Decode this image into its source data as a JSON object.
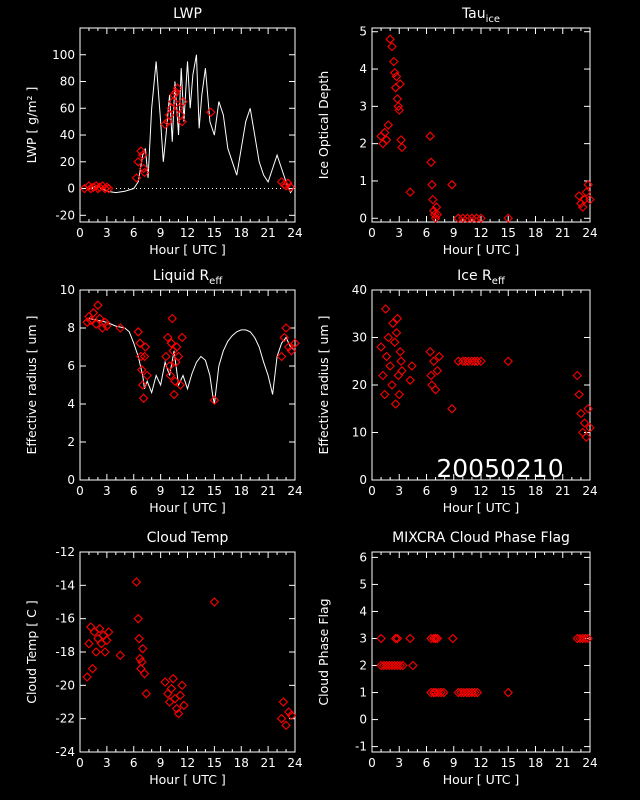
{
  "figure": {
    "date_stamp": "20050210",
    "colors": {
      "background": "#000000",
      "axes": "#ffffff",
      "markers": "#ff0000",
      "trace": "#ffffff"
    },
    "marker_shape": "diamond"
  },
  "chart_data": [
    {
      "id": "lwp",
      "type": "scatter",
      "title": "LWP",
      "title_sub": "",
      "xlabel": "Hour [ UTC ]",
      "ylabel": "LWP [ g/m² ]",
      "xlim": [
        0,
        24
      ],
      "ylim": [
        -25,
        120
      ],
      "xticks": [
        0,
        3,
        6,
        9,
        12,
        15,
        18,
        21,
        24
      ],
      "yticks": [
        -20,
        0,
        20,
        40,
        60,
        80,
        100
      ],
      "zero_line": true,
      "line": {
        "name": "",
        "x": [
          1.0,
          2.0,
          3.0,
          4.0,
          5.0,
          6.0,
          6.5,
          7.0,
          7.3,
          7.6,
          8.0,
          8.5,
          9.0,
          9.3,
          9.6,
          10.0,
          10.3,
          10.6,
          11.0,
          11.3,
          11.6,
          12.0,
          12.3,
          12.6,
          13.0,
          13.3,
          13.6,
          14.0,
          14.5,
          15.0,
          15.5,
          16.0,
          16.5,
          17.0,
          17.5,
          18.0,
          18.5,
          19.0,
          19.5,
          20.0,
          20.5,
          21.0,
          21.5,
          22.0,
          22.5,
          23.0,
          23.5,
          24.0
        ],
        "y": [
          0,
          2,
          -2,
          -3,
          -2,
          0,
          5,
          25,
          30,
          8,
          60,
          95,
          50,
          20,
          40,
          70,
          35,
          80,
          40,
          90,
          50,
          95,
          60,
          85,
          100,
          45,
          70,
          90,
          50,
          40,
          65,
          55,
          30,
          20,
          10,
          30,
          50,
          60,
          40,
          20,
          10,
          5,
          15,
          25,
          15,
          5,
          -3,
          2
        ]
      },
      "series": [
        {
          "name": "",
          "x": [
            0.5,
            1.0,
            1.2,
            1.5,
            1.8,
            2.0,
            2.2,
            2.5,
            2.8,
            3.0,
            3.2,
            6.3,
            6.5,
            6.8,
            7.0,
            7.1,
            7.2,
            9.5,
            9.8,
            10.0,
            10.2,
            10.4,
            10.5,
            10.7,
            10.9,
            11.0,
            11.2,
            11.4,
            11.5,
            14.6,
            22.5,
            22.8,
            23.0,
            23.2,
            23.5
          ],
          "y": [
            0,
            2,
            0,
            1,
            2,
            0,
            1,
            2,
            0,
            1,
            0,
            8,
            20,
            28,
            25,
            15,
            12,
            48,
            50,
            55,
            60,
            65,
            70,
            72,
            75,
            60,
            55,
            50,
            65,
            57,
            5,
            3,
            2,
            4,
            1
          ]
        }
      ]
    },
    {
      "id": "tau-ice",
      "type": "scatter",
      "title": "Tau",
      "title_sub": "ice",
      "xlabel": "Hour [ UTC ]",
      "ylabel": "Ice Optical Depth",
      "xlim": [
        0,
        24
      ],
      "ylim": [
        -0.1,
        5.1
      ],
      "xticks": [
        0,
        3,
        6,
        9,
        12,
        15,
        18,
        21,
        24
      ],
      "yticks": [
        0,
        1,
        2,
        3,
        4,
        5
      ],
      "series": [
        {
          "name": "",
          "x": [
            1.0,
            1.2,
            1.4,
            1.6,
            1.8,
            2.0,
            2.2,
            2.4,
            2.5,
            2.6,
            2.7,
            2.8,
            2.9,
            3.0,
            3.1,
            3.2,
            3.3,
            4.2,
            6.4,
            6.5,
            6.6,
            6.7,
            6.8,
            6.9,
            7.0,
            7.1,
            7.2,
            8.8,
            9.5,
            10.0,
            10.5,
            11.0,
            11.5,
            12.0,
            15.0,
            22.8,
            23.0,
            23.2,
            23.4,
            23.6,
            23.8,
            24.0
          ],
          "y": [
            2.2,
            2.0,
            2.3,
            2.1,
            2.5,
            4.8,
            4.6,
            4.2,
            3.9,
            3.5,
            3.8,
            3.2,
            3.0,
            2.9,
            3.6,
            2.1,
            1.9,
            0.7,
            2.2,
            1.5,
            0.9,
            0.5,
            0.2,
            0.1,
            0.0,
            0.3,
            0.1,
            0.9,
            0.0,
            0.0,
            0.0,
            0.0,
            0.0,
            0.0,
            0.0,
            0.6,
            0.4,
            0.3,
            0.5,
            0.7,
            0.9,
            0.5
          ]
        }
      ]
    },
    {
      "id": "liquid-reff",
      "type": "scatter",
      "title": "Liquid R",
      "title_sub": "eff",
      "xlabel": "Hour [ UTC ]",
      "ylabel": "Effective radius [ um ]",
      "xlim": [
        0,
        24
      ],
      "ylim": [
        0,
        10
      ],
      "xticks": [
        0,
        3,
        6,
        9,
        12,
        15,
        18,
        21,
        24
      ],
      "yticks": [
        0,
        2,
        4,
        6,
        8,
        10
      ],
      "line": {
        "name": "",
        "x": [
          1.0,
          2.0,
          3.0,
          4.0,
          5.0,
          5.5,
          6.0,
          6.5,
          7.0,
          7.2,
          7.5,
          8.0,
          8.5,
          9.0,
          9.5,
          10.0,
          10.5,
          11.0,
          11.5,
          12.0,
          12.5,
          13.0,
          13.5,
          14.0,
          14.5,
          14.8,
          15.0,
          15.2,
          15.5,
          16.0,
          16.5,
          17.0,
          17.5,
          18.0,
          18.5,
          19.0,
          19.5,
          20.0,
          20.5,
          21.0,
          21.5,
          22.0,
          22.5,
          23.0,
          23.5,
          24.0
        ],
        "y": [
          8.5,
          8.4,
          8.3,
          8.1,
          8.0,
          7.8,
          7.2,
          6.5,
          5.5,
          4.8,
          5.2,
          4.6,
          5.5,
          5.0,
          6.2,
          5.5,
          6.8,
          5.0,
          5.5,
          4.8,
          5.6,
          6.2,
          6.5,
          6.3,
          5.5,
          4.5,
          4.0,
          4.8,
          6.0,
          6.8,
          7.3,
          7.6,
          7.8,
          7.9,
          7.9,
          7.8,
          7.5,
          7.0,
          6.2,
          5.5,
          4.5,
          6.5,
          7.2,
          7.5,
          7.0,
          6.8
        ]
      },
      "series": [
        {
          "name": "",
          "x": [
            0.8,
            1.0,
            1.2,
            1.5,
            1.8,
            2.0,
            2.2,
            2.5,
            2.8,
            3.0,
            4.5,
            6.5,
            6.7,
            6.8,
            6.9,
            7.0,
            7.1,
            7.2,
            7.3,
            7.5,
            9.6,
            9.8,
            10.0,
            10.1,
            10.2,
            10.3,
            10.4,
            10.5,
            10.6,
            10.7,
            10.8,
            11.0,
            11.2,
            11.4,
            15.0,
            22.5,
            22.8,
            23.0,
            23.3,
            23.6,
            24.0
          ],
          "y": [
            8.3,
            8.6,
            8.4,
            8.8,
            8.2,
            9.2,
            8.5,
            8.0,
            8.3,
            8.1,
            8.0,
            7.8,
            7.2,
            6.5,
            5.8,
            5.0,
            4.3,
            6.5,
            7.0,
            5.5,
            6.5,
            7.5,
            6.0,
            5.5,
            7.2,
            8.5,
            6.8,
            4.5,
            5.2,
            6.2,
            7.0,
            6.5,
            5.0,
            7.5,
            4.2,
            6.5,
            7.5,
            8.0,
            7.0,
            6.8,
            7.2
          ]
        }
      ]
    },
    {
      "id": "ice-reff",
      "type": "scatter",
      "title": "Ice R",
      "title_sub": "eff",
      "xlabel": "Hour [ UTC ]",
      "ylabel": "Effective radius [ um ]",
      "xlim": [
        0,
        24
      ],
      "ylim": [
        0,
        40
      ],
      "xticks": [
        0,
        3,
        6,
        9,
        12,
        15,
        18,
        21,
        24
      ],
      "yticks": [
        0,
        10,
        20,
        30,
        40
      ],
      "series": [
        {
          "name": "",
          "x": [
            1.0,
            1.2,
            1.4,
            1.5,
            1.6,
            1.8,
            2.0,
            2.2,
            2.3,
            2.5,
            2.6,
            2.7,
            2.8,
            2.9,
            3.0,
            3.1,
            3.2,
            3.3,
            4.2,
            4.4,
            6.4,
            6.5,
            6.6,
            6.8,
            7.0,
            7.2,
            7.4,
            8.8,
            9.5,
            10.0,
            10.3,
            10.6,
            11.0,
            11.3,
            11.6,
            12.0,
            15.0,
            22.6,
            22.8,
            23.0,
            23.2,
            23.4,
            23.6,
            23.8,
            24.0
          ],
          "y": [
            28,
            22,
            18,
            36,
            26,
            30,
            24,
            20,
            33,
            29,
            16,
            31,
            34,
            22,
            18,
            27,
            25,
            23,
            21,
            24,
            27,
            22,
            20,
            25,
            19,
            23,
            26,
            15,
            25,
            25,
            25,
            25,
            25,
            25,
            25,
            25,
            25,
            22,
            18,
            14,
            10,
            12,
            9,
            15,
            11
          ]
        }
      ]
    },
    {
      "id": "cloud-temp",
      "type": "scatter",
      "title": "Cloud Temp",
      "title_sub": "",
      "xlabel": "Hour [ UTC ]",
      "ylabel": "Cloud Temp [ C ]",
      "xlim": [
        0,
        24
      ],
      "ylim": [
        -24,
        -12
      ],
      "xticks": [
        0,
        3,
        6,
        9,
        12,
        15,
        18,
        21,
        24
      ],
      "yticks": [
        -24,
        -22,
        -20,
        -18,
        -16,
        -14,
        -12
      ],
      "series": [
        {
          "name": "",
          "x": [
            0.8,
            1.0,
            1.2,
            1.4,
            1.6,
            1.8,
            2.0,
            2.2,
            2.4,
            2.6,
            2.8,
            3.0,
            3.2,
            4.5,
            6.3,
            6.5,
            6.6,
            6.7,
            6.8,
            6.9,
            7.0,
            7.2,
            7.4,
            9.5,
            9.8,
            10.0,
            10.2,
            10.4,
            10.6,
            10.8,
            11.0,
            11.2,
            11.4,
            11.6,
            15.0,
            22.5,
            22.7,
            23.0,
            23.3,
            23.6
          ],
          "y": [
            -19.5,
            -17.5,
            -16.5,
            -19.0,
            -16.8,
            -18.0,
            -17.2,
            -16.6,
            -17.5,
            -17.0,
            -18.0,
            -17.3,
            -16.8,
            -18.2,
            -13.8,
            -16.0,
            -17.2,
            -18.4,
            -19.0,
            -18.6,
            -17.8,
            -19.3,
            -20.5,
            -19.8,
            -20.5,
            -21.0,
            -20.2,
            -19.6,
            -20.8,
            -21.4,
            -21.7,
            -20.6,
            -20.0,
            -21.2,
            -15.0,
            -22.0,
            -21.0,
            -22.4,
            -21.6,
            -21.8
          ]
        }
      ]
    },
    {
      "id": "phase-flag",
      "type": "scatter",
      "title": "MIXCRA Cloud Phase Flag",
      "title_sub": "",
      "xlabel": "Hour [ UTC ]",
      "ylabel": "Cloud Phase Flag",
      "xlim": [
        0,
        24
      ],
      "ylim": [
        -1.2,
        6.2
      ],
      "xticks": [
        0,
        3,
        6,
        9,
        12,
        15,
        18,
        21,
        24
      ],
      "yticks": [
        -1,
        0,
        1,
        2,
        3,
        4,
        5,
        6
      ],
      "series": [
        {
          "name": "",
          "x": [
            1.0,
            1.3,
            1.6,
            1.9,
            2.2,
            2.5,
            2.8,
            3.1,
            3.4,
            1.0,
            2.6,
            2.8,
            4.2,
            4.5,
            6.5,
            6.8,
            7.0,
            7.2,
            6.5,
            6.8,
            7.0,
            7.3,
            7.6,
            7.9,
            8.9,
            9.5,
            9.8,
            10.1,
            10.4,
            10.7,
            11.0,
            11.3,
            11.6,
            15.0,
            22.6,
            22.9,
            23.2,
            23.5,
            23.8
          ],
          "y": [
            2,
            2,
            2,
            2,
            2,
            2,
            2,
            2,
            2,
            3,
            3,
            3,
            3,
            2,
            3,
            3,
            3,
            3,
            1,
            1,
            1,
            1,
            1,
            1,
            3,
            1,
            1,
            1,
            1,
            1,
            1,
            1,
            1,
            1,
            3,
            3,
            3,
            3,
            3
          ]
        }
      ]
    }
  ]
}
